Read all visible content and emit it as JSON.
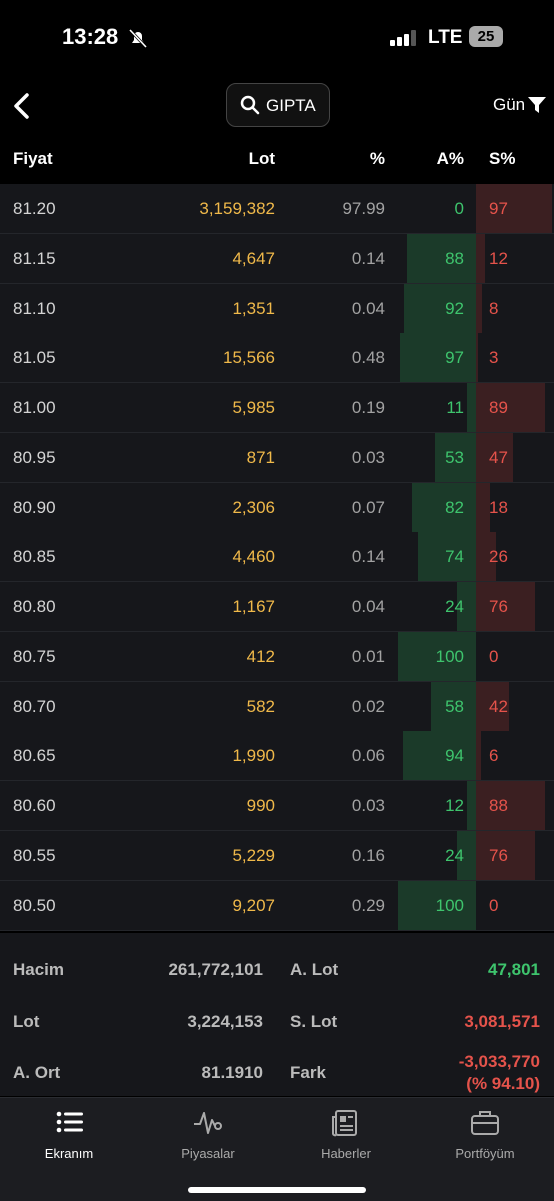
{
  "status_bar": {
    "time": "13:28",
    "network": "LTE",
    "battery": "25"
  },
  "header": {
    "search": "GIPTA",
    "filter": "Gün"
  },
  "table": {
    "columns": [
      "Fiyat",
      "Lot",
      "%",
      "A%",
      "S%"
    ],
    "rows": [
      [
        "81.20",
        "3,159,382",
        "97.99",
        "0",
        "97"
      ],
      [
        "81.15",
        "4,647",
        "0.14",
        "88",
        "12"
      ],
      [
        "81.10",
        "1,351",
        "0.04",
        "92",
        "8"
      ],
      [
        "81.05",
        "15,566",
        "0.48",
        "97",
        "3"
      ],
      [
        "81.00",
        "5,985",
        "0.19",
        "11",
        "89"
      ],
      [
        "80.95",
        "871",
        "0.03",
        "53",
        "47"
      ],
      [
        "80.90",
        "2,306",
        "0.07",
        "82",
        "18"
      ],
      [
        "80.85",
        "4,460",
        "0.14",
        "74",
        "26"
      ],
      [
        "80.80",
        "1,167",
        "0.04",
        "24",
        "76"
      ],
      [
        "80.75",
        "412",
        "0.01",
        "100",
        "0"
      ],
      [
        "80.70",
        "582",
        "0.02",
        "58",
        "42"
      ],
      [
        "80.65",
        "1,990",
        "0.06",
        "94",
        "6"
      ],
      [
        "80.60",
        "990",
        "0.03",
        "12",
        "88"
      ],
      [
        "80.55",
        "5,229",
        "0.16",
        "24",
        "76"
      ],
      [
        "80.50",
        "9,207",
        "0.29",
        "100",
        "0"
      ]
    ]
  },
  "summary": {
    "rows": [
      [
        "Hacim",
        "261,772,101",
        "A. Lot",
        "47,801"
      ],
      [
        "Lot",
        "3,224,153",
        "S. Lot",
        "3,081,571"
      ],
      [
        "A. Ort",
        "81.1910",
        "Fark",
        "-3,033,770"
      ]
    ],
    "fark_percent": "(% 94.10)"
  },
  "tabs": [
    "Ekranım",
    "Piyasalar",
    "Haberler",
    "Portföyüm"
  ]
}
